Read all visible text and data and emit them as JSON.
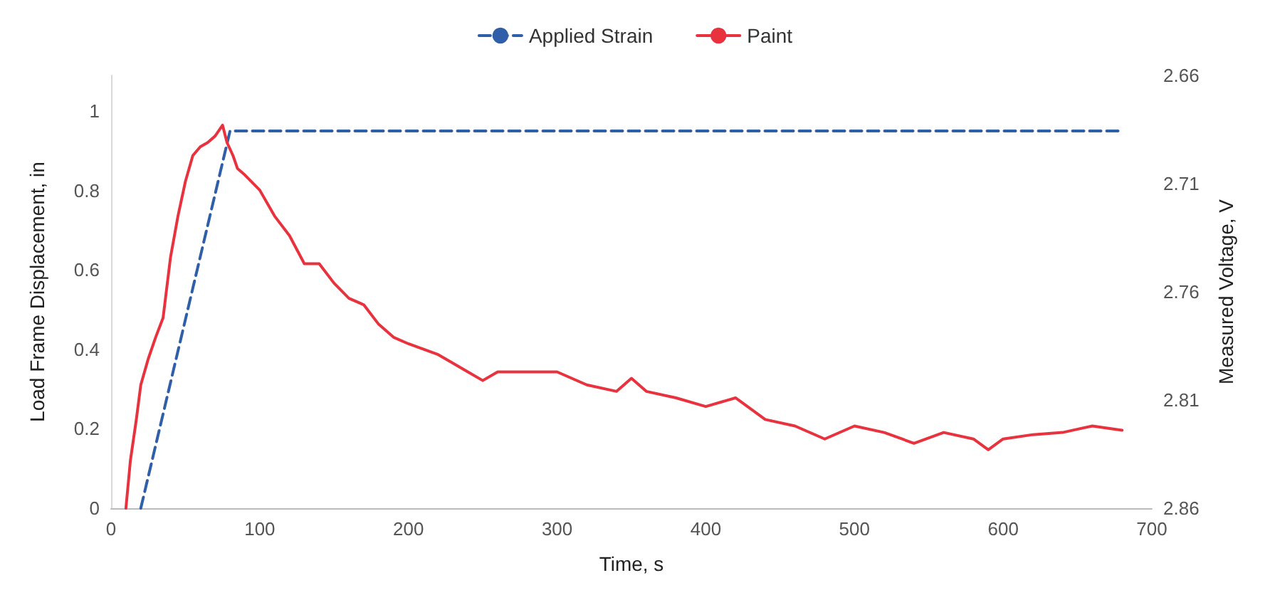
{
  "chart_data": {
    "type": "line",
    "xlabel": "Time, s",
    "ylabel": "Load Frame Displacement, in",
    "y2label": "Measured Voltage, V",
    "xlim": [
      0,
      700
    ],
    "xticks": [
      0,
      100,
      200,
      300,
      400,
      500,
      600,
      700
    ],
    "ylim": [
      0,
      1.09
    ],
    "yticks": [
      0,
      0.2,
      0.4,
      0.6,
      0.8,
      1
    ],
    "y2lim": [
      2.86,
      2.66
    ],
    "y2ticks": [
      2.66,
      2.71,
      2.76,
      2.81,
      2.86
    ],
    "legend": "top",
    "grid": false,
    "marker": "none",
    "series": [
      {
        "name": "Applied Strain",
        "color": "#2f5fa8",
        "line_style": "dashed",
        "x": [
          20,
          80,
          680
        ],
        "values": [
          0,
          0.95,
          0.95
        ]
      },
      {
        "name": "Paint",
        "color": "#e8333f",
        "line_style": "solid",
        "axis": "y2",
        "x": [
          10,
          13,
          17,
          20,
          25,
          30,
          35,
          40,
          45,
          50,
          55,
          60,
          65,
          70,
          75,
          78,
          82,
          85,
          90,
          100,
          110,
          120,
          130,
          140,
          150,
          160,
          170,
          180,
          190,
          200,
          220,
          240,
          250,
          260,
          280,
          300,
          320,
          340,
          350,
          360,
          380,
          400,
          420,
          440,
          460,
          480,
          500,
          520,
          540,
          560,
          580,
          590,
          600,
          620,
          640,
          660,
          680
        ],
        "values": [
          2.86,
          2.838,
          2.819,
          2.803,
          2.791,
          2.781,
          2.772,
          2.744,
          2.725,
          2.709,
          2.697,
          2.693,
          2.691,
          2.688,
          2.683,
          2.691,
          2.697,
          2.703,
          2.706,
          2.713,
          2.725,
          2.734,
          2.747,
          2.747,
          2.756,
          2.763,
          2.766,
          2.775,
          2.781,
          2.784,
          2.789,
          2.797,
          2.801,
          2.797,
          2.797,
          2.797,
          2.803,
          2.806,
          2.8,
          2.806,
          2.809,
          2.813,
          2.809,
          2.819,
          2.822,
          2.828,
          2.822,
          2.825,
          2.83,
          2.825,
          2.828,
          2.833,
          2.828,
          2.826,
          2.825,
          2.822,
          2.824
        ]
      }
    ]
  }
}
